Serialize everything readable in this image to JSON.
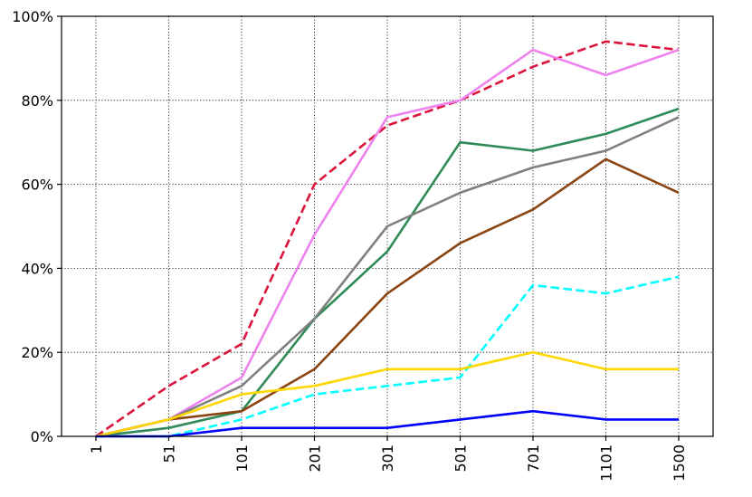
{
  "chart_data": {
    "type": "line",
    "title": "",
    "xlabel": "",
    "ylabel": "",
    "x": [
      "1",
      "51",
      "101",
      "201",
      "301",
      "501",
      "701",
      "1101",
      "1500"
    ],
    "ylim": [
      0,
      100
    ],
    "y_ticks": [
      {
        "value": 0,
        "label": "0%"
      },
      {
        "value": 20,
        "label": "20%"
      },
      {
        "value": 40,
        "label": "40%"
      },
      {
        "value": 60,
        "label": "60%"
      },
      {
        "value": 80,
        "label": "80%"
      },
      {
        "value": 100,
        "label": "100%"
      }
    ],
    "grid": true,
    "legend": "none",
    "series": [
      {
        "color": "#dc143c",
        "dash": "dashed",
        "values": [
          0,
          12,
          22,
          60,
          74,
          80,
          88,
          94,
          92
        ]
      },
      {
        "color": "#ee82ee",
        "dash": "solid",
        "values": [
          0,
          4,
          14,
          48,
          76,
          80,
          92,
          86,
          92
        ]
      },
      {
        "color": "#2e8b57",
        "dash": "solid",
        "values": [
          0,
          2,
          6,
          28,
          44,
          70,
          68,
          72,
          78
        ]
      },
      {
        "color": "#808080",
        "dash": "solid",
        "values": [
          0,
          4,
          12,
          28,
          50,
          58,
          64,
          68,
          76
        ]
      },
      {
        "color": "#8b4513",
        "dash": "solid",
        "values": [
          0,
          4,
          6,
          16,
          34,
          46,
          54,
          66,
          58
        ]
      },
      {
        "color": "#00ffff",
        "dash": "dashed",
        "values": [
          0,
          0,
          4,
          10,
          12,
          14,
          36,
          34,
          38
        ]
      },
      {
        "color": "#ffd700",
        "dash": "solid",
        "values": [
          0,
          4,
          10,
          12,
          16,
          16,
          20,
          16,
          16
        ]
      },
      {
        "color": "#0000ff",
        "dash": "solid",
        "values": [
          0,
          0,
          2,
          2,
          2,
          4,
          6,
          4,
          4
        ]
      }
    ]
  }
}
